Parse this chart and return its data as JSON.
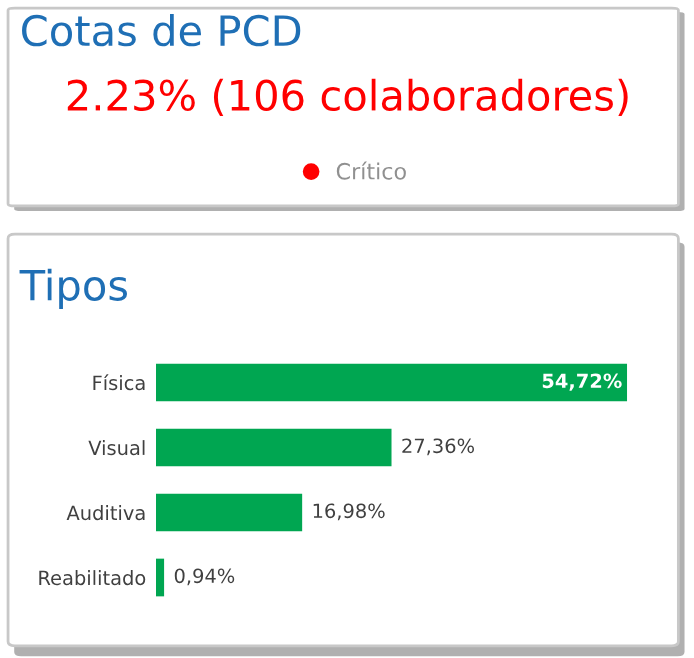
{
  "chart_data": [
    {
      "type": "other",
      "title": "Cotas de PCD",
      "annotations": [
        "2.23% (106 colaboradores)"
      ],
      "series": [
        {
          "name": "Crítico",
          "color": "#ff0000"
        }
      ],
      "legend": "bottom"
    },
    {
      "type": "bar",
      "orientation": "horizontal",
      "title": "Tipos",
      "categories": [
        "Física",
        "Visual",
        "Auditiva",
        "Reabilitado"
      ],
      "values": [
        54.72,
        27.36,
        16.98,
        0.94
      ],
      "color": "#00a651",
      "value_labels": [
        "54,72%",
        "27,36%",
        "16,98%",
        "0,94%"
      ]
    }
  ]
}
